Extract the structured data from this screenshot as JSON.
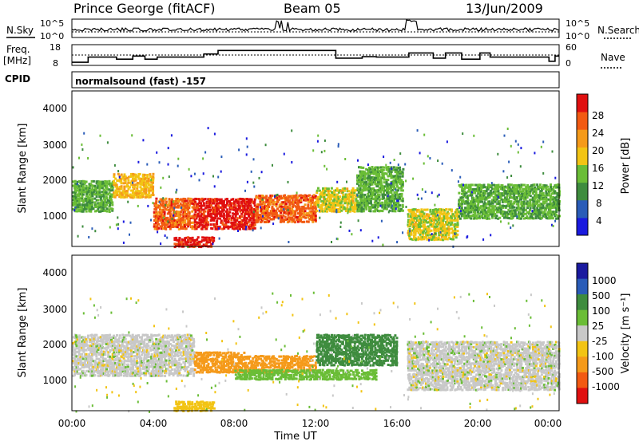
{
  "header": {
    "station": "Prince George (fitACF)",
    "beam": "Beam 05",
    "date": "13/Jun/2009"
  },
  "nsky_panel": {
    "left_label": "N.Sky",
    "right_label": "N.Search",
    "left_ticks": [
      "10^5",
      "10^0"
    ],
    "right_ticks": [
      "10^5",
      "10^0"
    ]
  },
  "freq_panel": {
    "left_label_1": "Freq.",
    "left_label_2": "[MHz]",
    "right_label": "Nave",
    "left_ticks": [
      "18",
      "8"
    ],
    "right_ticks": [
      "60",
      "0"
    ],
    "freq_x_hours": [
      0,
      0.8,
      2.2,
      3.0,
      3.6,
      4.2,
      6.5,
      7.2,
      8.5,
      13.0,
      14.3,
      15.0,
      16.6,
      17.8,
      18.4,
      19.2,
      20.1,
      20.6,
      23.5,
      23.8,
      24.0
    ],
    "freq_values": [
      9.5,
      12.0,
      11.0,
      12.5,
      11.0,
      12.0,
      13.5,
      15.2,
      15.2,
      11.5,
      12.2,
      12.0,
      14.0,
      11.5,
      14.0,
      11.0,
      14.0,
      12.0,
      10.0,
      12.5,
      12.5
    ],
    "nave_reference": 30
  },
  "cpid": {
    "label": "CPID",
    "program": "normalsound (fast) -157"
  },
  "power_panel": {
    "ylabel": "Slant Range [km]",
    "yticks": [
      "4000",
      "3000",
      "2000",
      "1000"
    ],
    "colorbar_label": "Power [dB]",
    "colorbar_ticks": [
      "28",
      "24",
      "20",
      "16",
      "12",
      "8",
      "4"
    ],
    "colors": [
      "#1a1adf",
      "#2a5cb8",
      "#3e8c3e",
      "#6abd36",
      "#f2c414",
      "#f59a1a",
      "#f25a12",
      "#e01010"
    ]
  },
  "velocity_panel": {
    "ylabel": "Slant Range [km]",
    "yticks": [
      "4000",
      "3000",
      "2000",
      "1000"
    ],
    "colorbar_label": "Velocity [m s⁻¹]",
    "colorbar_ticks": [
      "1000",
      "500",
      "100",
      "25",
      "-25",
      "-100",
      "-500",
      "-1000"
    ],
    "colors": [
      "#1a1a9f",
      "#2a5cb8",
      "#3e8c3e",
      "#6abd36",
      "#c8c8c8",
      "#f2c414",
      "#f59a1a",
      "#f25a12",
      "#e01010"
    ]
  },
  "xaxis": {
    "label": "Time UT",
    "ticks": [
      "00:00",
      "04:00",
      "08:00",
      "12:00",
      "16:00",
      "20:00",
      "00:00"
    ]
  },
  "chart_data": [
    {
      "type": "heatmap",
      "title": "Power",
      "xlabel": "Time UT",
      "ylabel": "Slant Range [km]",
      "xlim_hours": [
        0,
        24
      ],
      "ylim": [
        180,
        4600
      ],
      "colorbar": "Power [dB]",
      "colorbar_range": [
        0,
        30
      ],
      "bands": [
        {
          "t": [
            0.0,
            2.0
          ],
          "range": [
            1200,
            2100
          ],
          "value": 12
        },
        {
          "t": [
            2.0,
            4.0
          ],
          "range": [
            1600,
            2300
          ],
          "value": 18
        },
        {
          "t": [
            4.0,
            6.0
          ],
          "range": [
            700,
            1600
          ],
          "value": 24
        },
        {
          "t": [
            6.0,
            9.0
          ],
          "range": [
            700,
            1600
          ],
          "value": 28
        },
        {
          "t": [
            9.0,
            12.0
          ],
          "range": [
            900,
            1700
          ],
          "value": 24
        },
        {
          "t": [
            12.0,
            14.0
          ],
          "range": [
            1200,
            1900
          ],
          "value": 16
        },
        {
          "t": [
            14.0,
            16.3
          ],
          "range": [
            1200,
            2500
          ],
          "value": 12
        },
        {
          "t": [
            16.5,
            19.0
          ],
          "range": [
            400,
            1300
          ],
          "value": 16
        },
        {
          "t": [
            19.0,
            24.0
          ],
          "range": [
            1000,
            2000
          ],
          "value": 12
        },
        {
          "t": [
            5.0,
            7.0
          ],
          "range": [
            200,
            500
          ],
          "value": 28
        }
      ]
    },
    {
      "type": "heatmap",
      "title": "Velocity",
      "xlabel": "Time UT",
      "ylabel": "Slant Range [km]",
      "xlim_hours": [
        0,
        24
      ],
      "ylim": [
        180,
        4600
      ],
      "colorbar": "Velocity [m s⁻¹]",
      "bands": [
        {
          "t": [
            0.0,
            6.0
          ],
          "range": [
            1200,
            2400
          ],
          "value": 0
        },
        {
          "t": [
            6.0,
            8.5
          ],
          "range": [
            1300,
            1900
          ],
          "value": -300
        },
        {
          "t": [
            8.5,
            12.0
          ],
          "range": [
            1300,
            1800
          ],
          "value": -150
        },
        {
          "t": [
            12.0,
            16.0
          ],
          "range": [
            1500,
            2400
          ],
          "value": 300
        },
        {
          "t": [
            8.0,
            15.0
          ],
          "range": [
            1100,
            1400
          ],
          "value": 60
        },
        {
          "t": [
            16.5,
            24.0
          ],
          "range": [
            800,
            2200
          ],
          "value": 0
        },
        {
          "t": [
            5.0,
            7.0
          ],
          "range": [
            200,
            500
          ],
          "value": -60
        }
      ]
    }
  ]
}
